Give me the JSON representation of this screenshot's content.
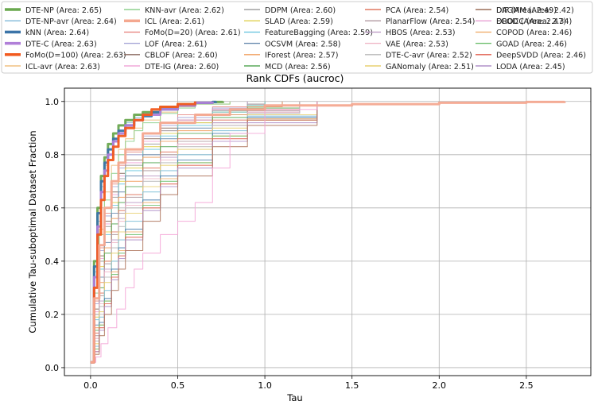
{
  "chart_data": {
    "type": "line",
    "title": "Rank CDFs (aucroc)",
    "xlabel": "Tau",
    "ylabel": "Cumulative Tau-suboptimal Dataset Fraction",
    "xlim": [
      -0.15,
      2.87
    ],
    "ylim": [
      -0.03,
      1.05
    ],
    "xticks": [
      "0.0",
      "0.5",
      "1.0",
      "1.5",
      "2.0",
      "2.5"
    ],
    "yticks": [
      "0.0",
      "0.2",
      "0.4",
      "0.6",
      "0.8",
      "1.0"
    ],
    "grid": true,
    "legend_position": "top",
    "series": [
      {
        "name": "DTE-NP (Area: 2.65)",
        "color": "#6aa84f",
        "bold": true,
        "x": [
          0,
          0.02,
          0.04,
          0.06,
          0.08,
          0.1,
          0.13,
          0.16,
          0.2,
          0.25,
          0.3,
          0.4,
          0.5,
          0.6,
          0.7,
          0.76
        ],
        "y": [
          0.02,
          0.4,
          0.6,
          0.72,
          0.79,
          0.84,
          0.88,
          0.91,
          0.93,
          0.95,
          0.96,
          0.98,
          0.99,
          0.995,
          0.998,
          1.0
        ]
      },
      {
        "name": "DTE-NP-avr (Area: 2.64)",
        "color": "#7fb8d8",
        "bold": false,
        "x": [
          0,
          0.02,
          0.04,
          0.06,
          0.08,
          0.1,
          0.13,
          0.16,
          0.2,
          0.25,
          0.3,
          0.4,
          0.5,
          0.6,
          0.7
        ],
        "y": [
          0.02,
          0.36,
          0.55,
          0.68,
          0.76,
          0.82,
          0.86,
          0.89,
          0.92,
          0.94,
          0.955,
          0.975,
          0.985,
          0.995,
          1.0
        ]
      },
      {
        "name": "kNN (Area: 2.64)",
        "color": "#3b74a8",
        "bold": true,
        "x": [
          0,
          0.02,
          0.04,
          0.06,
          0.08,
          0.1,
          0.13,
          0.16,
          0.2,
          0.25,
          0.3,
          0.35,
          0.4,
          0.5,
          0.6,
          0.7,
          0.72
        ],
        "y": [
          0.02,
          0.38,
          0.58,
          0.7,
          0.77,
          0.82,
          0.86,
          0.89,
          0.91,
          0.93,
          0.945,
          0.96,
          0.97,
          0.985,
          0.995,
          0.998,
          1.0
        ]
      },
      {
        "name": "DTE-C (Area: 2.63)",
        "color": "#b07fd8",
        "bold": true,
        "x": [
          0,
          0.02,
          0.04,
          0.06,
          0.08,
          0.1,
          0.13,
          0.16,
          0.2,
          0.25,
          0.3,
          0.4,
          0.5,
          0.6,
          0.7
        ],
        "y": [
          0.02,
          0.34,
          0.53,
          0.66,
          0.74,
          0.8,
          0.85,
          0.88,
          0.91,
          0.93,
          0.95,
          0.97,
          0.985,
          0.995,
          1.0
        ]
      },
      {
        "name": "FoMo(D=100) (Area: 2.63)",
        "color": "#f25a1e",
        "bold": true,
        "x": [
          0,
          0.02,
          0.04,
          0.06,
          0.08,
          0.1,
          0.13,
          0.16,
          0.2,
          0.25,
          0.3,
          0.35,
          0.4,
          0.5,
          0.6
        ],
        "y": [
          0.02,
          0.3,
          0.5,
          0.63,
          0.72,
          0.78,
          0.83,
          0.87,
          0.9,
          0.93,
          0.95,
          0.97,
          0.98,
          0.99,
          1.0
        ]
      },
      {
        "name": "ICL-avr (Area: 2.63)",
        "color": "#f0c080",
        "bold": false,
        "x": [
          0,
          0.02,
          0.05,
          0.08,
          0.12,
          0.16,
          0.2,
          0.25,
          0.3,
          0.4,
          0.5,
          0.6,
          0.8
        ],
        "y": [
          0.02,
          0.3,
          0.52,
          0.66,
          0.76,
          0.82,
          0.86,
          0.9,
          0.93,
          0.96,
          0.98,
          0.99,
          1.0
        ]
      },
      {
        "name": "KNN-avr (Area: 2.62)",
        "color": "#8ed08e",
        "bold": false,
        "x": [
          0,
          0.02,
          0.05,
          0.08,
          0.12,
          0.16,
          0.2,
          0.25,
          0.3,
          0.4,
          0.5,
          0.6,
          0.8
        ],
        "y": [
          0.02,
          0.28,
          0.5,
          0.63,
          0.73,
          0.8,
          0.85,
          0.89,
          0.92,
          0.955,
          0.975,
          0.99,
          1.0
        ]
      },
      {
        "name": "ICL (Area: 2.61)",
        "color": "#f4a890",
        "bold": true,
        "x": [
          0,
          0.02,
          0.05,
          0.08,
          0.12,
          0.16,
          0.2,
          0.3,
          0.4,
          0.6,
          0.8,
          1.0,
          1.5,
          2.0,
          2.5,
          2.72
        ],
        "y": [
          0.02,
          0.26,
          0.46,
          0.6,
          0.7,
          0.77,
          0.82,
          0.88,
          0.92,
          0.95,
          0.97,
          0.985,
          0.99,
          0.995,
          0.998,
          1.0
        ]
      },
      {
        "name": "FoMo(D=20) (Area: 2.61)",
        "color": "#e88a84",
        "bold": false,
        "x": [
          0,
          0.02,
          0.05,
          0.08,
          0.12,
          0.16,
          0.2,
          0.3,
          0.4,
          0.5,
          0.7,
          0.9
        ],
        "y": [
          0.02,
          0.25,
          0.45,
          0.58,
          0.69,
          0.76,
          0.81,
          0.88,
          0.92,
          0.95,
          0.98,
          1.0
        ]
      },
      {
        "name": "LOF (Area: 2.61)",
        "color": "#a8a8d8",
        "bold": false,
        "x": [
          0,
          0.02,
          0.05,
          0.08,
          0.12,
          0.16,
          0.2,
          0.3,
          0.4,
          0.5,
          0.7,
          0.9
        ],
        "y": [
          0.02,
          0.24,
          0.44,
          0.57,
          0.68,
          0.75,
          0.8,
          0.87,
          0.91,
          0.94,
          0.975,
          1.0
        ]
      },
      {
        "name": "CBLOF (Area: 2.60)",
        "color": "#8c6d62",
        "bold": false,
        "x": [
          0,
          0.02,
          0.05,
          0.08,
          0.12,
          0.16,
          0.2,
          0.3,
          0.4,
          0.5,
          0.7,
          0.9,
          1.0
        ],
        "y": [
          0.02,
          0.22,
          0.42,
          0.55,
          0.66,
          0.73,
          0.78,
          0.86,
          0.9,
          0.93,
          0.97,
          0.99,
          1.0
        ]
      },
      {
        "name": "DTE-IG (Area: 2.60)",
        "color": "#f0a8d8",
        "bold": false,
        "x": [
          0,
          0.02,
          0.05,
          0.08,
          0.12,
          0.16,
          0.2,
          0.3,
          0.4,
          0.5,
          0.7,
          0.9,
          1.0
        ],
        "y": [
          0.02,
          0.21,
          0.41,
          0.54,
          0.65,
          0.72,
          0.77,
          0.85,
          0.89,
          0.93,
          0.97,
          0.99,
          1.0
        ]
      },
      {
        "name": "DDPM (Area: 2.60)",
        "color": "#a0a0a0",
        "bold": false,
        "x": [
          0,
          0.02,
          0.05,
          0.08,
          0.12,
          0.16,
          0.2,
          0.3,
          0.4,
          0.5,
          0.7,
          0.9,
          1.0
        ],
        "y": [
          0.02,
          0.2,
          0.4,
          0.53,
          0.64,
          0.71,
          0.76,
          0.84,
          0.89,
          0.92,
          0.965,
          0.99,
          1.0
        ]
      },
      {
        "name": "SLAD (Area: 2.59)",
        "color": "#e0d050",
        "bold": false,
        "x": [
          0,
          0.02,
          0.05,
          0.08,
          0.12,
          0.16,
          0.2,
          0.3,
          0.4,
          0.5,
          0.7,
          0.9,
          1.0
        ],
        "y": [
          0.02,
          0.19,
          0.38,
          0.51,
          0.62,
          0.7,
          0.75,
          0.83,
          0.88,
          0.92,
          0.96,
          0.985,
          1.0
        ]
      },
      {
        "name": "FeatureBagging (Area: 2.59)",
        "color": "#70c8e0",
        "bold": false,
        "x": [
          0,
          0.02,
          0.05,
          0.08,
          0.12,
          0.16,
          0.2,
          0.3,
          0.4,
          0.5,
          0.7,
          0.9,
          1.0
        ],
        "y": [
          0.02,
          0.18,
          0.37,
          0.5,
          0.61,
          0.69,
          0.74,
          0.82,
          0.87,
          0.91,
          0.96,
          0.985,
          1.0
        ]
      },
      {
        "name": "OCSVM (Area: 2.58)",
        "color": "#6a8caf",
        "bold": false,
        "x": [
          0,
          0.02,
          0.05,
          0.08,
          0.12,
          0.16,
          0.2,
          0.3,
          0.4,
          0.5,
          0.7,
          0.9,
          1.1
        ],
        "y": [
          0.02,
          0.16,
          0.34,
          0.47,
          0.58,
          0.66,
          0.72,
          0.8,
          0.86,
          0.9,
          0.95,
          0.98,
          1.0
        ]
      },
      {
        "name": "IForest (Area: 2.57)",
        "color": "#f0a060",
        "bold": false,
        "x": [
          0,
          0.02,
          0.05,
          0.08,
          0.12,
          0.16,
          0.2,
          0.3,
          0.4,
          0.5,
          0.7,
          0.9,
          1.1
        ],
        "y": [
          0.02,
          0.15,
          0.32,
          0.45,
          0.56,
          0.64,
          0.7,
          0.79,
          0.85,
          0.89,
          0.95,
          0.98,
          1.0
        ]
      },
      {
        "name": "MCD (Area: 2.56)",
        "color": "#5aaa5a",
        "bold": false,
        "x": [
          0,
          0.02,
          0.05,
          0.08,
          0.12,
          0.16,
          0.2,
          0.3,
          0.4,
          0.5,
          0.7,
          0.9,
          1.2
        ],
        "y": [
          0.02,
          0.14,
          0.3,
          0.43,
          0.54,
          0.62,
          0.68,
          0.77,
          0.83,
          0.88,
          0.94,
          0.975,
          1.0
        ]
      },
      {
        "name": "PCA (Area: 2.54)",
        "color": "#e07860",
        "bold": false,
        "x": [
          0,
          0.02,
          0.05,
          0.08,
          0.12,
          0.16,
          0.2,
          0.3,
          0.4,
          0.5,
          0.7,
          0.9,
          1.2
        ],
        "y": [
          0.02,
          0.13,
          0.28,
          0.4,
          0.51,
          0.59,
          0.65,
          0.75,
          0.81,
          0.86,
          0.93,
          0.97,
          1.0
        ]
      },
      {
        "name": "PlanarFlow (Area: 2.54)",
        "color": "#b09aa0",
        "bold": false,
        "x": [
          0,
          0.02,
          0.05,
          0.08,
          0.12,
          0.16,
          0.2,
          0.3,
          0.4,
          0.5,
          0.7,
          0.9,
          1.2
        ],
        "y": [
          0.02,
          0.12,
          0.27,
          0.39,
          0.5,
          0.58,
          0.64,
          0.74,
          0.8,
          0.85,
          0.92,
          0.965,
          1.0
        ]
      },
      {
        "name": "HBOS (Area: 2.53)",
        "color": "#c0a0c8",
        "bold": false,
        "x": [
          0,
          0.02,
          0.05,
          0.08,
          0.12,
          0.16,
          0.2,
          0.3,
          0.4,
          0.5,
          0.7,
          0.9,
          1.2
        ],
        "y": [
          0.02,
          0.11,
          0.25,
          0.37,
          0.48,
          0.56,
          0.62,
          0.72,
          0.79,
          0.84,
          0.92,
          0.96,
          1.0
        ]
      },
      {
        "name": "VAE (Area: 2.53)",
        "color": "#f0b8c8",
        "bold": false,
        "x": [
          0,
          0.02,
          0.05,
          0.08,
          0.12,
          0.16,
          0.2,
          0.3,
          0.4,
          0.5,
          0.7,
          0.9,
          1.2
        ],
        "y": [
          0.02,
          0.11,
          0.24,
          0.36,
          0.47,
          0.55,
          0.61,
          0.71,
          0.78,
          0.84,
          0.91,
          0.96,
          1.0
        ]
      },
      {
        "name": "DTE-C-avr (Area: 2.52)",
        "color": "#b8b8b8",
        "bold": false,
        "x": [
          0,
          0.02,
          0.05,
          0.08,
          0.12,
          0.16,
          0.2,
          0.3,
          0.4,
          0.5,
          0.7,
          0.9,
          1.2
        ],
        "y": [
          0.02,
          0.1,
          0.23,
          0.34,
          0.45,
          0.53,
          0.6,
          0.7,
          0.77,
          0.83,
          0.91,
          0.955,
          1.0
        ]
      },
      {
        "name": "GANomaly (Area: 2.51)",
        "color": "#e8d070",
        "bold": false,
        "x": [
          0,
          0.02,
          0.05,
          0.08,
          0.12,
          0.16,
          0.2,
          0.3,
          0.4,
          0.5,
          0.7,
          0.9,
          1.3
        ],
        "y": [
          0.02,
          0.09,
          0.21,
          0.32,
          0.43,
          0.51,
          0.58,
          0.68,
          0.76,
          0.82,
          0.9,
          0.95,
          1.0
        ]
      },
      {
        "name": "DIF (Area: 2.49)",
        "color": "#80c0d8",
        "bold": false,
        "x": [
          0,
          0.02,
          0.05,
          0.08,
          0.12,
          0.16,
          0.2,
          0.3,
          0.4,
          0.5,
          0.7,
          0.9,
          1.3
        ],
        "y": [
          0.02,
          0.08,
          0.19,
          0.29,
          0.4,
          0.48,
          0.55,
          0.66,
          0.74,
          0.8,
          0.89,
          0.945,
          1.0
        ]
      },
      {
        "name": "ECOD (Area: 2.47)",
        "color": "#4a80b0",
        "bold": false,
        "x": [
          0,
          0.02,
          0.05,
          0.08,
          0.12,
          0.16,
          0.2,
          0.3,
          0.4,
          0.5,
          0.7,
          0.9,
          1.3
        ],
        "y": [
          0.02,
          0.07,
          0.17,
          0.26,
          0.37,
          0.45,
          0.52,
          0.63,
          0.72,
          0.78,
          0.88,
          0.94,
          1.0
        ]
      },
      {
        "name": "COPOD (Area: 2.46)",
        "color": "#f0b070",
        "bold": false,
        "x": [
          0,
          0.02,
          0.05,
          0.08,
          0.12,
          0.16,
          0.2,
          0.3,
          0.4,
          0.5,
          0.7,
          0.9,
          1.3
        ],
        "y": [
          0.02,
          0.07,
          0.16,
          0.25,
          0.36,
          0.44,
          0.51,
          0.62,
          0.71,
          0.77,
          0.87,
          0.935,
          1.0
        ]
      },
      {
        "name": "GOAD (Area: 2.46)",
        "color": "#70c070",
        "bold": false,
        "x": [
          0,
          0.02,
          0.05,
          0.08,
          0.12,
          0.16,
          0.2,
          0.3,
          0.4,
          0.5,
          0.7,
          0.9,
          1.3
        ],
        "y": [
          0.02,
          0.07,
          0.16,
          0.25,
          0.35,
          0.43,
          0.5,
          0.61,
          0.7,
          0.77,
          0.87,
          0.93,
          1.0
        ]
      },
      {
        "name": "DeepSVDD (Area: 2.46)",
        "color": "#e06050",
        "bold": false,
        "x": [
          0,
          0.02,
          0.05,
          0.08,
          0.12,
          0.16,
          0.2,
          0.3,
          0.4,
          0.5,
          0.7,
          0.9,
          1.3
        ],
        "y": [
          0.02,
          0.06,
          0.15,
          0.24,
          0.34,
          0.42,
          0.49,
          0.6,
          0.69,
          0.76,
          0.86,
          0.93,
          1.0
        ]
      },
      {
        "name": "LODA (Area: 2.45)",
        "color": "#b090c8",
        "bold": false,
        "x": [
          0,
          0.02,
          0.05,
          0.08,
          0.12,
          0.16,
          0.2,
          0.3,
          0.4,
          0.5,
          0.7,
          0.9,
          1.3
        ],
        "y": [
          0.02,
          0.06,
          0.14,
          0.23,
          0.33,
          0.41,
          0.48,
          0.59,
          0.68,
          0.75,
          0.85,
          0.92,
          1.0
        ]
      },
      {
        "name": "DAGMM (Area: 2.42)",
        "color": "#b07860",
        "bold": false,
        "x": [
          0,
          0.02,
          0.05,
          0.08,
          0.12,
          0.16,
          0.2,
          0.3,
          0.4,
          0.5,
          0.7,
          0.9,
          1.3
        ],
        "y": [
          0.02,
          0.05,
          0.12,
          0.2,
          0.29,
          0.37,
          0.44,
          0.55,
          0.65,
          0.72,
          0.83,
          0.91,
          1.0
        ]
      },
      {
        "name": "DROCC (Area: 2.34)",
        "color": "#f4a8d8",
        "bold": false,
        "x": [
          0,
          0.03,
          0.06,
          0.1,
          0.15,
          0.2,
          0.25,
          0.3,
          0.4,
          0.5,
          0.6,
          0.7,
          0.8,
          1.0,
          1.3
        ],
        "y": [
          0.02,
          0.04,
          0.09,
          0.15,
          0.22,
          0.3,
          0.37,
          0.43,
          0.5,
          0.55,
          0.62,
          0.75,
          0.88,
          0.97,
          1.0
        ]
      }
    ]
  }
}
